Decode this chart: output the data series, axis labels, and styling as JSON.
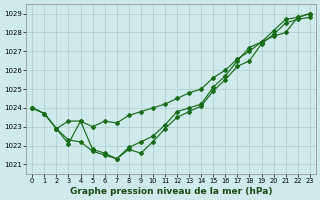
{
  "xlabel": "Graphe pression niveau de la mer (hPa)",
  "bg_color": "#ceeaea",
  "grid_color": "#aacece",
  "line_color": "#1a6b1a",
  "ylim": [
    1020.5,
    1029.5
  ],
  "xlim": [
    -0.5,
    23.5
  ],
  "yticks": [
    1021,
    1022,
    1023,
    1024,
    1025,
    1026,
    1027,
    1028,
    1029
  ],
  "xticks": [
    0,
    1,
    2,
    3,
    4,
    5,
    6,
    7,
    8,
    9,
    10,
    11,
    12,
    13,
    14,
    15,
    16,
    17,
    18,
    19,
    20,
    21,
    22,
    23
  ],
  "line1": [
    1024.0,
    1023.7,
    1022.9,
    1023.3,
    1023.3,
    1021.8,
    1021.6,
    1021.3,
    1021.8,
    1021.6,
    1022.2,
    1022.9,
    1023.5,
    1023.8,
    1024.1,
    1024.9,
    1025.5,
    1026.2,
    1026.5,
    1027.4,
    1027.9,
    1028.5,
    1028.7,
    1028.8
  ],
  "line2": [
    1024.0,
    1023.7,
    1022.9,
    1022.3,
    1022.2,
    1021.7,
    1021.5,
    1021.3,
    1021.9,
    1022.2,
    1022.5,
    1023.1,
    1023.8,
    1024.0,
    1024.2,
    1025.1,
    1025.7,
    1026.5,
    1027.2,
    1027.5,
    1028.1,
    1028.7,
    1028.8,
    1029.0
  ],
  "line3": [
    1024.0,
    1023.7,
    1022.9,
    1022.1,
    1023.3,
    1023.0,
    1023.3,
    1023.2,
    1023.6,
    1023.8,
    1024.0,
    1024.2,
    1024.5,
    1024.8,
    1025.0,
    1025.6,
    1026.0,
    1026.6,
    1027.0,
    1027.5,
    1027.8,
    1028.0,
    1028.8,
    1029.0
  ]
}
